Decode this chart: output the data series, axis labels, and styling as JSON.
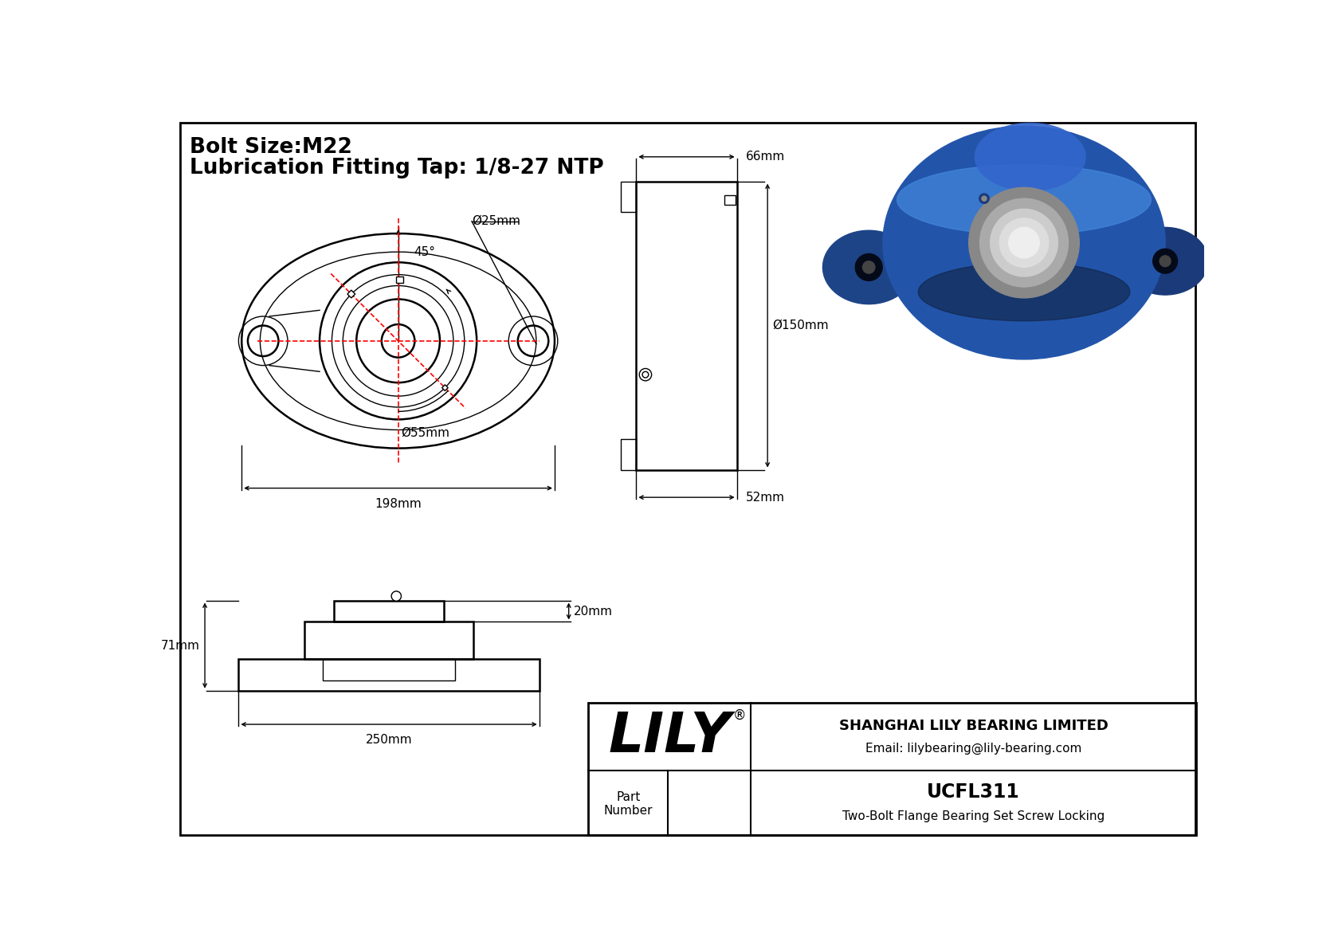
{
  "title_line1": "Bolt Size:M22",
  "title_line2": "Lubrication Fitting Tap: 1/8-27 NTP",
  "bg_color": "#ffffff",
  "border_color": "#000000",
  "drawing_color": "#000000",
  "red_color": "#ff0000",
  "part_number": "UCFL311",
  "part_desc": "Two-Bolt Flange Bearing Set Screw Locking",
  "company_name": "SHANGHAI LILY BEARING LIMITED",
  "company_email": "Email: lilybearing@lily-bearing.com",
  "brand": "LILY",
  "dims": {
    "d25": "Ø25mm",
    "d55": "Ø55mm",
    "d150": "Ø150mm",
    "w198": "198mm",
    "w66": "66mm",
    "w52": "52mm",
    "h71": "71mm",
    "w250": "250mm",
    "t20": "20mm",
    "angle": "45°"
  }
}
